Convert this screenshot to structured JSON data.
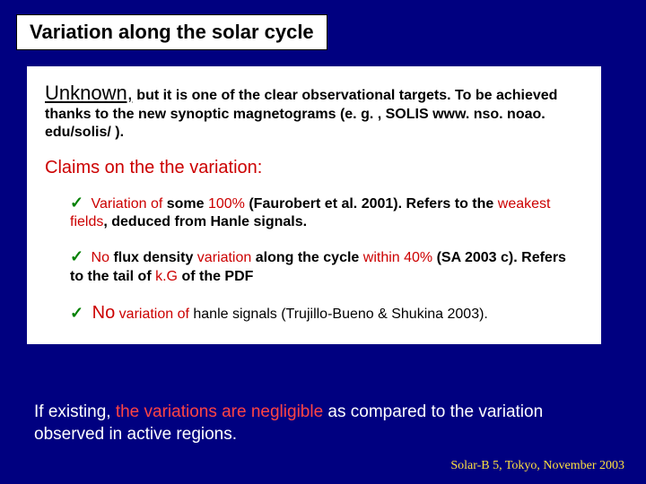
{
  "title": "Variation along the solar cycle",
  "paragraph1": {
    "lead": "Unknown,",
    "rest": " but it is one of the clear observational targets. To be achieved thanks to the new synoptic magnetograms (e. g. , SOLIS www. nso. noao. edu/solis/ )."
  },
  "claimsHeader": "Claims on the the variation:",
  "bullets": [
    {
      "check": "✓",
      "red1": " Variation of ",
      "black1": "some",
      "red2": " 100% ",
      "black2": "  (Faurobert et al. 2001). Refers to the",
      "red3": " weakest fields",
      "black3": ", deduced from Hanle signals."
    },
    {
      "check": "✓",
      "red1": "  No ",
      "black1": "flux density",
      "red2": " variation ",
      "black2": "along the cycle",
      "red3": " within 40% ",
      "black3": "(SA 2003 c). Refers to the tail of",
      "red4": " k.G ",
      "black4": "of the PDF"
    },
    {
      "check": "✓",
      "red1": " No",
      "red2": " variation  of ",
      "black1": "hanle signals (Trujillo-Bueno & Shukina 2003)."
    }
  ],
  "bottom": {
    "white1": "If existing,  ",
    "red": "the variations are negligible",
    "white2": " as compared to the variation observed in active regions."
  },
  "footer": "Solar-B 5, Tokyo, November 2003",
  "colors": {
    "background": "#000080",
    "boxBg": "#ffffff",
    "textBlack": "#000000",
    "red": "#cc0000",
    "brightRed": "#ff4444",
    "green": "#008000",
    "white": "#ffffff",
    "footerYellow": "#ffe040"
  }
}
